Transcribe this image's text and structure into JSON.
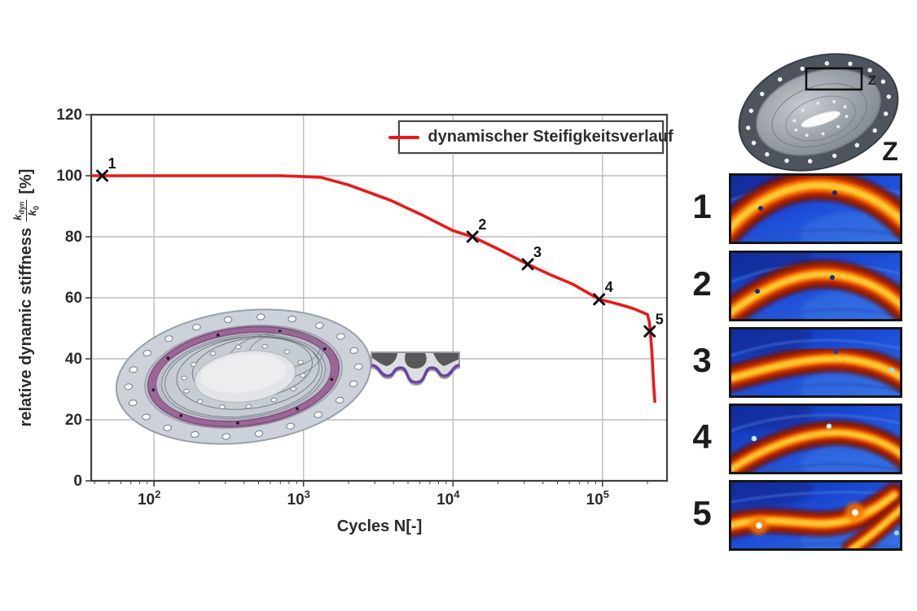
{
  "chart_data": {
    "type": "line",
    "title": "",
    "xlabel": "Cycles N[-]",
    "ylabel": "relative dynamic stiffness",
    "ylabel_formula": {
      "num_base": "k",
      "num_sub": "dyn",
      "den_base": "k",
      "den_sub": "0",
      "suffix": "[%]"
    },
    "x_scale": "log",
    "xlim": [
      38,
      270000
    ],
    "ylim": [
      0,
      120
    ],
    "y_ticks": [
      0,
      20,
      40,
      60,
      80,
      100,
      120
    ],
    "x_tick_exponents": [
      2,
      3,
      4,
      5
    ],
    "grid": true,
    "legend": {
      "label": "dynamischer Steifigkeitsverlauf",
      "color": "#ee1717",
      "position": "top-right"
    },
    "series": [
      {
        "name": "dynamischer Steifigkeitsverlauf",
        "color": "#ee1717",
        "points": [
          [
            38,
            100
          ],
          [
            700,
            100
          ],
          [
            1300,
            99.5
          ],
          [
            2000,
            97
          ],
          [
            3800,
            92
          ],
          [
            6300,
            87
          ],
          [
            10000,
            82
          ],
          [
            13500,
            80
          ],
          [
            20000,
            76
          ],
          [
            31600,
            71
          ],
          [
            45000,
            67.5
          ],
          [
            63000,
            64.5
          ],
          [
            95000,
            59.5
          ],
          [
            126000,
            58
          ],
          [
            160000,
            56.5
          ],
          [
            200000,
            54.5
          ],
          [
            206000,
            52
          ],
          [
            209000,
            49
          ],
          [
            214000,
            42
          ],
          [
            219000,
            33
          ],
          [
            224000,
            26
          ]
        ]
      }
    ],
    "markers": [
      {
        "label": "1",
        "x": 45,
        "y": 100
      },
      {
        "label": "2",
        "x": 13500,
        "y": 80
      },
      {
        "label": "3",
        "x": 31600,
        "y": 71
      },
      {
        "label": "4",
        "x": 95000,
        "y": 59.5
      },
      {
        "label": "5",
        "x": 207000,
        "y": 49
      }
    ]
  },
  "right_panel": {
    "zoom_label_small": "Z",
    "zoom_label_large": "Z",
    "frames": [
      {
        "label": "1"
      },
      {
        "label": "2"
      },
      {
        "label": "3"
      },
      {
        "label": "4"
      },
      {
        "label": "5"
      }
    ]
  },
  "colors": {
    "curve_red": "#ee1717",
    "grid_grey": "#bcbcbc",
    "axis_grey": "#3f3f3f",
    "text_dark": "#2a2a2a",
    "thermal_blue": "#1d4ed8",
    "thermal_hot": "#ff9500",
    "elastomer_purple": "#9c6796"
  }
}
